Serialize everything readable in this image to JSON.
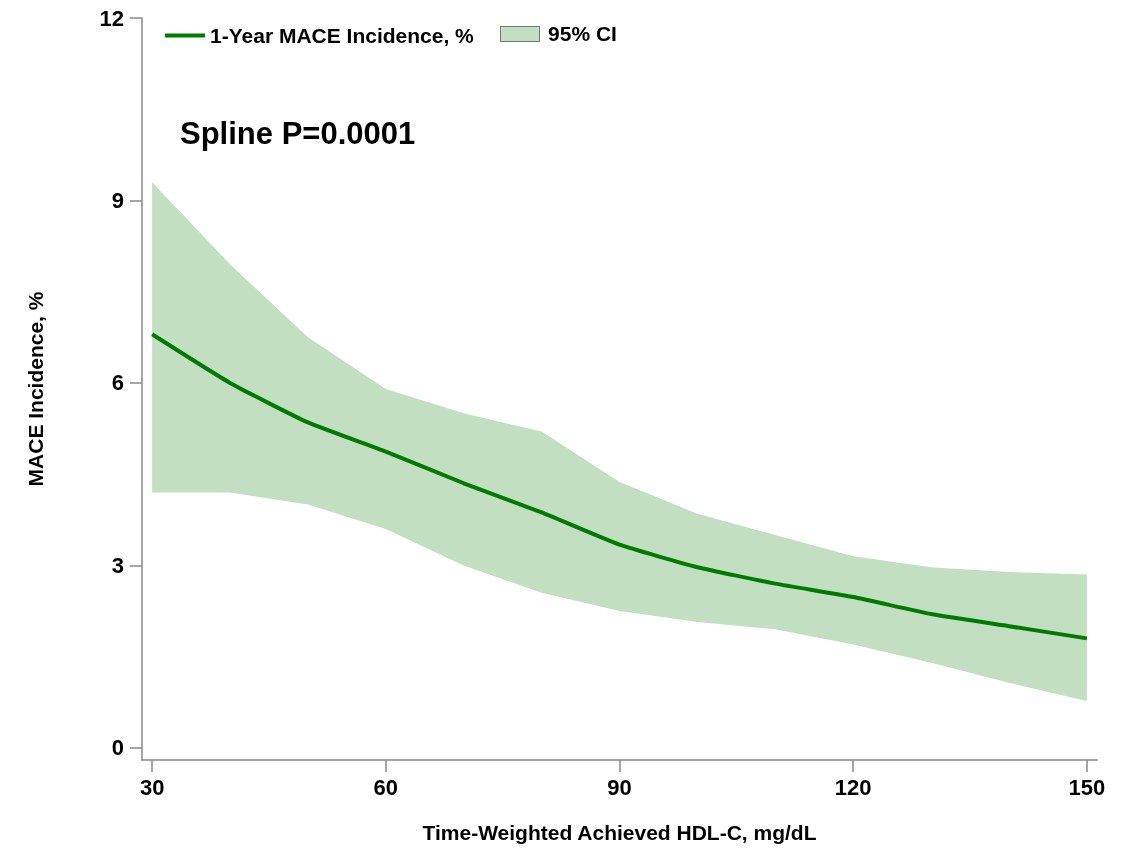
{
  "chart_data": {
    "type": "line",
    "xlabel": "Time-Weighted Achieved HDL-C, mg/dL",
    "ylabel": "MACE Incidence, %",
    "annotations": [
      "95% CI",
      "Spline P=0.0001"
    ],
    "x": [
      30,
      40,
      50,
      60,
      70,
      80,
      90,
      100,
      110,
      120,
      130,
      140,
      150
    ],
    "series": [
      {
        "name": "1-Year MACE Incidence, %",
        "color": "#007a00",
        "values": [
          6.8,
          6.0,
          5.35,
          4.87,
          4.35,
          3.87,
          3.34,
          2.97,
          2.7,
          2.48,
          2.2,
          2.0,
          1.8
        ],
        "lower": [
          4.2,
          4.2,
          4.0,
          3.6,
          3.0,
          2.55,
          2.25,
          2.07,
          1.95,
          1.7,
          1.4,
          1.07,
          0.77
        ],
        "upper": [
          9.3,
          7.95,
          6.75,
          5.9,
          5.5,
          5.2,
          4.37,
          3.85,
          3.5,
          3.15,
          2.97,
          2.89,
          2.85
        ]
      }
    ],
    "xlim": [
      28.7,
      151.3
    ],
    "xticks": [
      30,
      60,
      90,
      120,
      150
    ],
    "ylim": [
      -0.2,
      12
    ],
    "yticks": [
      0,
      3,
      6,
      9,
      12
    ],
    "grid": false,
    "legend": "top left",
    "marker": "none",
    "line_style": "solid"
  }
}
